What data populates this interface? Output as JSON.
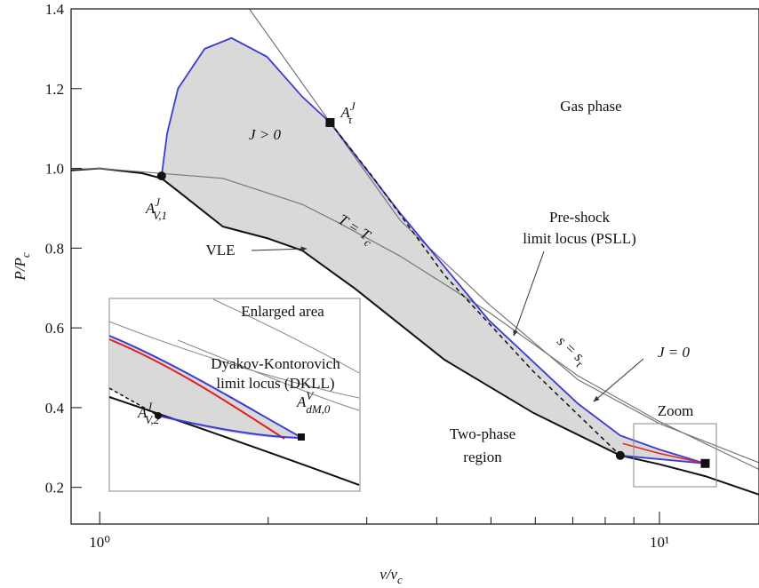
{
  "chart_data": {
    "type": "line",
    "xscale": "log",
    "xlabel": {
      "text": "v/v",
      "sub": "c"
    },
    "ylabel": {
      "text": "P/P",
      "sub": "c"
    },
    "xlim": [
      0.889,
      15.06
    ],
    "ylim": [
      0.108,
      1.4
    ],
    "xticks": [
      {
        "value": 1,
        "label": "10⁰"
      },
      {
        "value": 10,
        "label": "10¹"
      }
    ],
    "xminor": [
      2,
      3,
      4,
      5,
      6,
      7,
      8,
      9
    ],
    "yticks": [
      0.2,
      0.4,
      0.6,
      0.8,
      {
        "value": 1,
        "label": "1.0"
      },
      1.2,
      1.4
    ],
    "series": [
      {
        "color": "#111111",
        "width": 2,
        "x": [
          0.889,
          1.0,
          1.19,
          1.29,
          1.38,
          1.66,
          1.99,
          2.3,
          2.86,
          4.13,
          5.95,
          8.51,
          10,
          12.07,
          15.06
        ],
        "values": [
          0.995,
          1.0,
          0.988,
          0.975,
          0.943,
          0.854,
          0.825,
          0.794,
          0.698,
          0.52,
          0.387,
          0.28,
          0.258,
          0.228,
          0.182
        ]
      },
      {
        "color": "#777777",
        "width": 1.2,
        "x": [
          0.889,
          1.0,
          1.66,
          2.3,
          2.66,
          3.44,
          4.95,
          7.15,
          10,
          15.06
        ],
        "values": [
          0.998,
          1.0,
          0.975,
          0.91,
          0.865,
          0.78,
          0.64,
          0.48,
          0.365,
          0.245
        ]
      },
      {
        "color": "#777777",
        "width": 1.2,
        "x": [
          1.85,
          2.22,
          2.58,
          3.44,
          4.95,
          7.15,
          10,
          15.06
        ],
        "values": [
          1.4,
          1.244,
          1.115,
          0.87,
          0.66,
          0.47,
          0.36,
          0.262
        ]
      },
      {
        "color": "#3b3bd6",
        "width": 1.8,
        "x": [
          1.29,
          1.32,
          1.38,
          1.54,
          1.72,
          1.99,
          2.3,
          2.58,
          3.44,
          4.95,
          7.15,
          8.51,
          10,
          12.07
        ],
        "values": [
          0.981,
          1.088,
          1.2,
          1.3,
          1.327,
          1.28,
          1.18,
          1.115,
          0.888,
          0.62,
          0.41,
          0.33,
          0.295,
          0.26
        ]
      },
      {
        "color": "#3b3bd6",
        "width": 1.8,
        "x": [
          8.51,
          12.07
        ],
        "values": [
          0.28,
          0.26
        ]
      },
      {
        "color": "#111111",
        "width": 1.5,
        "dash": true,
        "x": [
          2.58,
          3.08,
          4.13,
          5.95,
          8.51
        ],
        "values": [
          1.115,
          0.977,
          0.732,
          0.491,
          0.28
        ]
      },
      {
        "color": "#e02020",
        "width": 1.5,
        "x": [
          8.6,
          10,
          12.07
        ],
        "values": [
          0.31,
          0.285,
          0.26
        ]
      }
    ],
    "region_color": "#d9d9d9",
    "points": [
      {
        "x": 1.29,
        "y": 0.981,
        "marker": "circle",
        "label": {
          "text": "A",
          "sup": "J",
          "sub": "V,1"
        }
      },
      {
        "x": 2.58,
        "y": 1.115,
        "marker": "square",
        "label": {
          "text": "A",
          "sup": "J",
          "sub": "τ"
        }
      },
      {
        "x": 8.51,
        "y": 0.28,
        "marker": "circle"
      },
      {
        "x": 12.07,
        "y": 0.26,
        "marker": "square"
      }
    ],
    "annotations": [
      "Gas phase",
      {
        "text": "J > 0"
      },
      "VLE",
      {
        "text": "T = T",
        "sub": "c"
      },
      "Pre-shock",
      "limit locus (PSLL)",
      {
        "text": "s = s",
        "sub": "τ"
      },
      {
        "text": "J = 0"
      },
      "Zoom",
      "Two-phase",
      "region",
      "Enlarged area",
      "Dyakov-Kontorovich",
      "limit locus (DKLL)",
      {
        "text": "A",
        "sup": "V",
        "sub": "dM,0"
      },
      {
        "text": "A",
        "sup": "J",
        "sub": "V,2"
      }
    ]
  }
}
